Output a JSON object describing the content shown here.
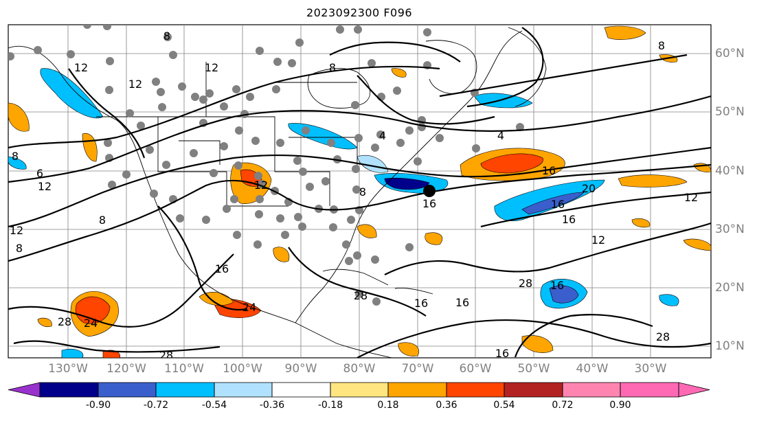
{
  "title": "2023092300 F096",
  "lat_labels": [
    "60°N",
    "50°N",
    "40°N",
    "30°N",
    "20°N",
    "10°N"
  ],
  "lon_labels": [
    "130°W",
    "120°W",
    "110°W",
    "100°W",
    "90°W",
    "80°W",
    "70°W",
    "60°W",
    "50°W",
    "40°W",
    "30°W"
  ],
  "contour_labels": [
    "8",
    "12",
    "12",
    "8",
    "12",
    "8",
    "6",
    "12",
    "12",
    "8",
    "8",
    "12",
    "8",
    "16",
    "16",
    "16",
    "16",
    "20",
    "12",
    "16",
    "12",
    "28",
    "24",
    "28",
    "28",
    "24",
    "16",
    "16",
    "28",
    "16",
    "28",
    "16",
    "4",
    "8",
    "4"
  ],
  "colorbar": {
    "ticks": [
      "-0.90",
      "-0.72",
      "-0.54",
      "-0.36",
      "-0.18",
      "0.18",
      "0.36",
      "0.54",
      "0.72",
      "0.90"
    ],
    "colors": [
      "#9932CC",
      "#00008B",
      "#3A5FCD",
      "#00BFFF",
      "#B0E2FF",
      "#FFFFFF",
      "#FFE57F",
      "#FFA500",
      "#FF4500",
      "#B22222",
      "#FF85B0",
      "#FF69B4"
    ]
  },
  "colors": {
    "land_contour": "#000000",
    "grid": "#808080",
    "station_marker": "#808080",
    "highlight_marker": "#000000"
  }
}
